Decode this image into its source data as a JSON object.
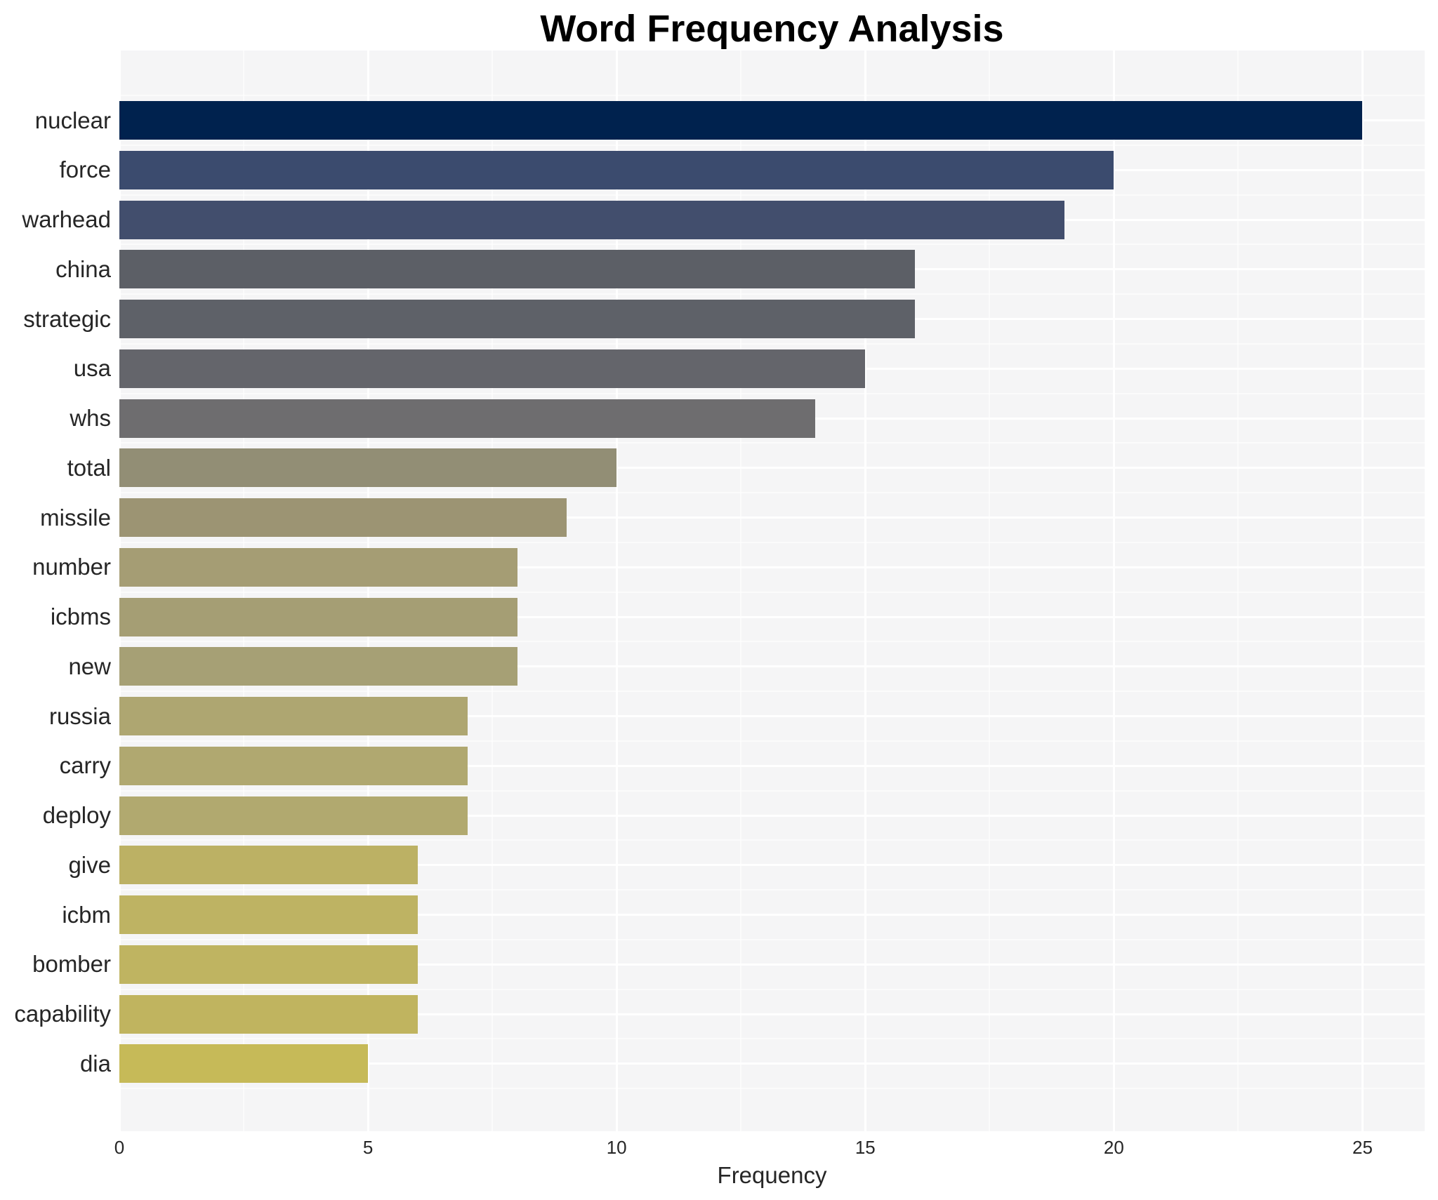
{
  "chart_data": {
    "type": "bar",
    "orientation": "horizontal",
    "title": "Word Frequency Analysis",
    "xlabel": "Frequency",
    "ylabel": "",
    "categories": [
      "nuclear",
      "force",
      "warhead",
      "china",
      "strategic",
      "usa",
      "whs",
      "total",
      "missile",
      "number",
      "icbms",
      "new",
      "russia",
      "carry",
      "deploy",
      "give",
      "icbm",
      "bomber",
      "capability",
      "dia"
    ],
    "values": [
      25,
      20,
      19,
      16,
      16,
      15,
      14,
      10,
      9,
      8,
      8,
      8,
      7,
      7,
      7,
      6,
      6,
      6,
      6,
      5
    ],
    "bar_colors": [
      "#00224e",
      "#3b4b6e",
      "#424e6d",
      "#5c5f66",
      "#5e6168",
      "#64656b",
      "#6e6d6f",
      "#928e75",
      "#9c9473",
      "#a59d74",
      "#a59e74",
      "#a6a075",
      "#aea671",
      "#b0a870",
      "#b1a96f",
      "#bcb164",
      "#beb363",
      "#bfb461",
      "#c0b45f",
      "#c6ba58"
    ],
    "xlim": [
      0,
      26.25
    ],
    "xticks": [
      0,
      5,
      10,
      15,
      20,
      25
    ],
    "xticks_minor": [
      2.5,
      7.5,
      12.5,
      17.5,
      22.5
    ],
    "grid": true,
    "legend": false,
    "plot_background": "#f5f5f6",
    "grid_color": "#ffffff",
    "text_color": "#262626",
    "title_color": "#000000",
    "figure_background": "#ffffff"
  }
}
